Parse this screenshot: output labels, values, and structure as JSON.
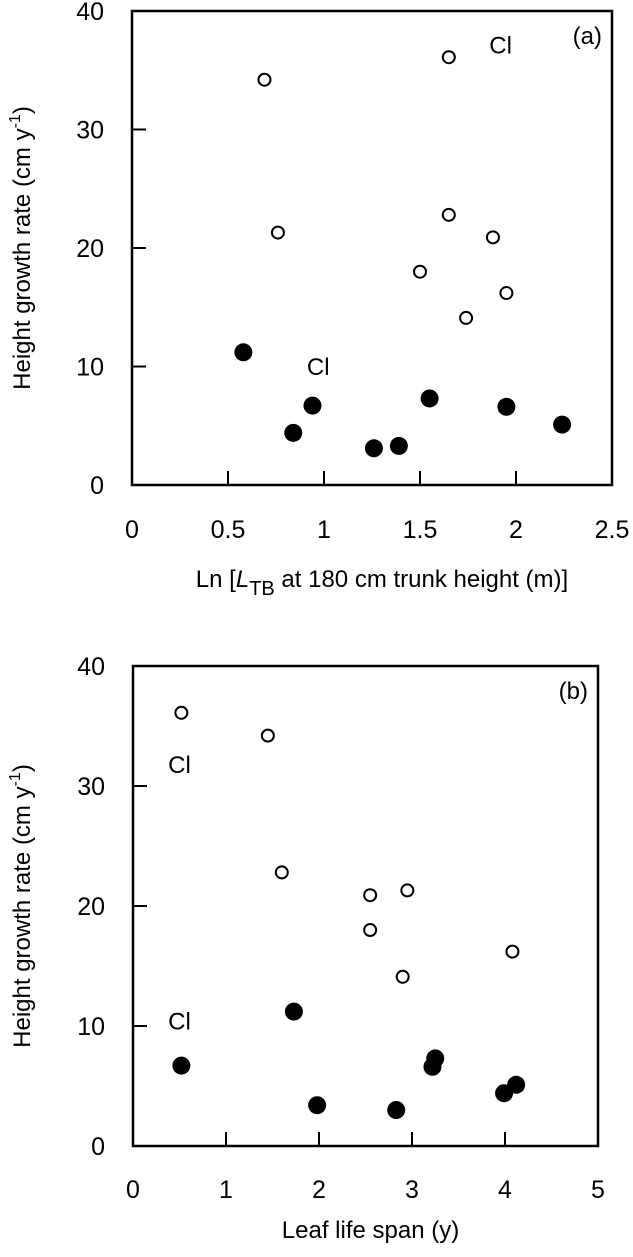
{
  "figure": {
    "panels": [
      "(a)",
      "(b)"
    ]
  },
  "chart_data": [
    {
      "type": "scatter",
      "panel_label": "(a)",
      "title": "",
      "xlabel_parts": [
        "Ln [",
        "L",
        "TB",
        " at 180 cm trunk height (m)]"
      ],
      "xlabel": "Ln [L_TB at 180 cm trunk height (m)]",
      "ylabel": "Height growth rate (cm y-1)",
      "ylabel_parts": [
        "Height growth rate (cm y",
        "-1",
        ")"
      ],
      "xlim": [
        0,
        2.5
      ],
      "ylim": [
        0,
        40
      ],
      "xticks": [
        0,
        0.5,
        1,
        1.5,
        2,
        2.5
      ],
      "xtick_labels": [
        "0",
        "0.5",
        "1",
        "1.5",
        "2",
        "2.5"
      ],
      "yticks": [
        0,
        10,
        20,
        30,
        40
      ],
      "ytick_labels": [
        "0",
        "10",
        "20",
        "30",
        "40"
      ],
      "grid": false,
      "series": [
        {
          "name": "open",
          "marker": "open-circle",
          "points": [
            [
              0.69,
              34.2
            ],
            [
              1.65,
              36.1
            ],
            [
              0.76,
              21.3
            ],
            [
              1.65,
              22.8
            ],
            [
              1.88,
              20.9
            ],
            [
              1.5,
              18.0
            ],
            [
              1.95,
              16.2
            ],
            [
              1.74,
              14.1
            ]
          ]
        },
        {
          "name": "filled",
          "marker": "filled-circle",
          "points": [
            [
              0.58,
              11.2
            ],
            [
              0.84,
              4.4
            ],
            [
              0.94,
              6.7
            ],
            [
              1.26,
              3.1
            ],
            [
              1.39,
              3.3
            ],
            [
              1.55,
              7.3
            ],
            [
              1.95,
              6.6
            ],
            [
              2.24,
              5.1
            ]
          ]
        }
      ],
      "annotations": [
        {
          "text": "Cl",
          "x": 1.92,
          "y": 36.4
        },
        {
          "text": "Cl",
          "x": 0.97,
          "y": 9.3
        }
      ]
    },
    {
      "type": "scatter",
      "panel_label": "(b)",
      "title": "",
      "xlabel": "Leaf life span (y)",
      "ylabel": "Height growth rate (cm y-1)",
      "ylabel_parts": [
        "Height growth rate (cm y",
        "-1",
        ")"
      ],
      "xlim": [
        0,
        5
      ],
      "ylim": [
        0,
        40
      ],
      "xticks": [
        0,
        1,
        2,
        3,
        4,
        5
      ],
      "xtick_labels": [
        "0",
        "1",
        "2",
        "3",
        "4",
        "5"
      ],
      "yticks": [
        0,
        10,
        20,
        30,
        40
      ],
      "ytick_labels": [
        "0",
        "10",
        "20",
        "30",
        "40"
      ],
      "grid": false,
      "series": [
        {
          "name": "open",
          "marker": "open-circle",
          "points": [
            [
              0.52,
              36.1
            ],
            [
              1.45,
              34.2
            ],
            [
              1.6,
              22.8
            ],
            [
              2.55,
              20.9
            ],
            [
              2.95,
              21.3
            ],
            [
              2.55,
              18.0
            ],
            [
              2.9,
              14.1
            ],
            [
              4.08,
              16.2
            ]
          ]
        },
        {
          "name": "filled",
          "marker": "filled-circle",
          "points": [
            [
              0.52,
              6.7
            ],
            [
              1.73,
              11.2
            ],
            [
              1.98,
              3.4
            ],
            [
              2.83,
              3.0
            ],
            [
              3.25,
              7.3
            ],
            [
              3.22,
              6.6
            ],
            [
              3.99,
              4.4
            ],
            [
              4.12,
              5.1
            ]
          ]
        }
      ],
      "annotations": [
        {
          "text": "Cl",
          "x": 0.5,
          "y": 31.1
        },
        {
          "text": "Cl",
          "x": 0.5,
          "y": 9.7
        }
      ]
    }
  ]
}
